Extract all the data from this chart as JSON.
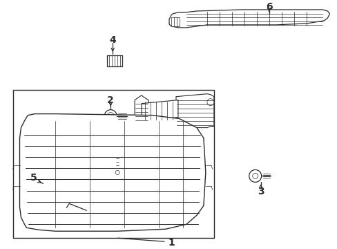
{
  "bg_color": "#ffffff",
  "line_color": "#2a2a2a",
  "parts": [
    {
      "id": 1,
      "label": "1"
    },
    {
      "id": 2,
      "label": "2"
    },
    {
      "id": 3,
      "label": "3"
    },
    {
      "id": 4,
      "label": "4"
    },
    {
      "id": 5,
      "label": "5"
    },
    {
      "id": 6,
      "label": "6"
    }
  ],
  "figsize": [
    4.89,
    3.6
  ],
  "dpi": 100
}
